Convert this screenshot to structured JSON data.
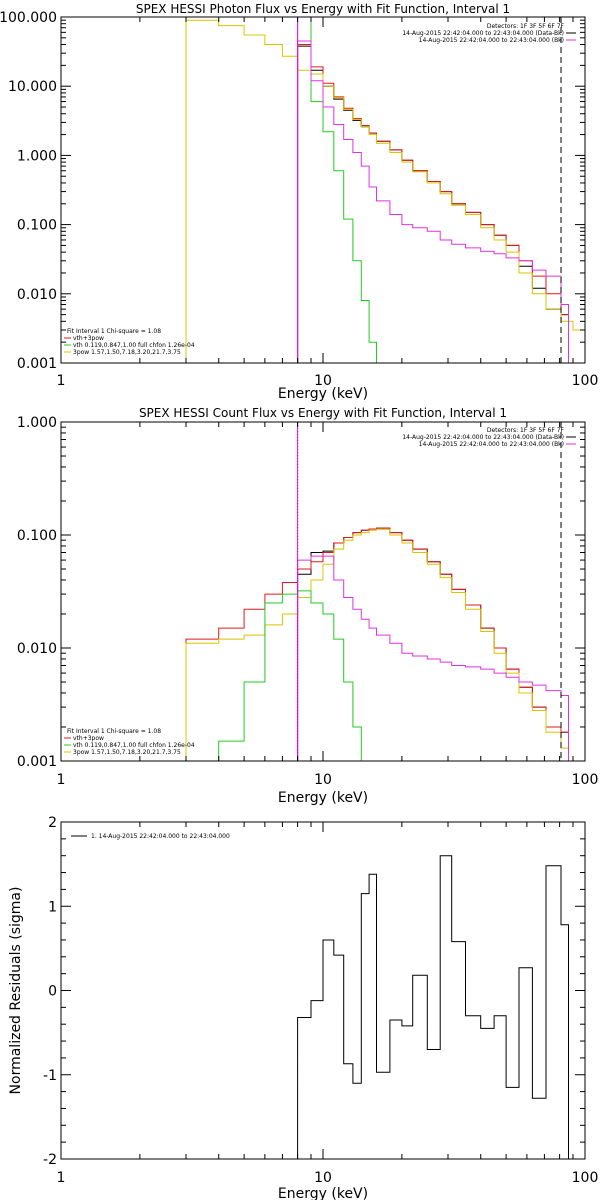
{
  "chart_data": [
    {
      "type": "line",
      "title": "SPEX HESSI Photon Flux vs Energy with Fit Function, Interval 1",
      "xlabel": "Energy (keV)",
      "ylabel": "",
      "xscale": "log",
      "yscale": "log",
      "xlim": [
        1,
        100
      ],
      "ylim": [
        0.001,
        100
      ],
      "x_ticks": [
        "1",
        "10",
        "100"
      ],
      "y_ticks": [
        "0.001",
        "0.010",
        "0.100",
        "1.000",
        "10.000",
        "100.000"
      ],
      "grid": false,
      "info_lines": [
        "Detectors: 1F 3F 5F 6F 7F",
        "14-Aug-2015 22:42:04.000 to 22:43:04.000 (Data-Bk)",
        "14-Aug-2015 22:42:04.000 to 22:43:04.000 (Bk)"
      ],
      "legend_lines": [
        "Fit Interval 1   Chi-square = 1.08",
        "vth+3pow",
        "vth 0.119,0.847,1.00  full chfon 1.26e-04",
        "3pow 1.57,1.50,7.18,3.20,21.7,3.75"
      ],
      "vlines": [
        {
          "x": 8,
          "style": "solid",
          "color": "#ff00ff"
        },
        {
          "x": 81,
          "style": "dashed",
          "color": "#000000"
        }
      ],
      "series": [
        {
          "color": "#000000",
          "x": [
            8,
            9,
            10,
            11,
            12,
            13,
            14,
            15,
            16,
            18,
            20,
            22,
            25,
            28,
            31,
            35,
            40,
            45,
            50,
            56,
            63,
            71,
            81
          ],
          "values": [
            38,
            17,
            10,
            6.5,
            4.5,
            3.2,
            2.6,
            2.1,
            1.6,
            1.2,
            0.85,
            0.6,
            0.42,
            0.3,
            0.2,
            0.15,
            0.1,
            0.07,
            0.05,
            0.025,
            0.012,
            0.006,
            0.005
          ]
        },
        {
          "color": "#e31a1c",
          "x": [
            8,
            9,
            10,
            11,
            12,
            13,
            14,
            15,
            16,
            18,
            20,
            22,
            25,
            28,
            31,
            35,
            40,
            45,
            50,
            56,
            63,
            71,
            81
          ],
          "values": [
            40,
            19,
            11,
            7,
            4.8,
            3.4,
            2.7,
            2.1,
            1.6,
            1.2,
            0.85,
            0.6,
            0.42,
            0.3,
            0.2,
            0.15,
            0.1,
            0.07,
            0.05,
            0.03,
            0.018,
            0.01,
            0.005
          ]
        },
        {
          "color": "#d9c400",
          "x": [
            3,
            4,
            5,
            6,
            7,
            8,
            9,
            10,
            11,
            12,
            13,
            14,
            15,
            16,
            18,
            20,
            22,
            25,
            28,
            31,
            35,
            40,
            45,
            50,
            56,
            63,
            71,
            81,
            90,
            100
          ],
          "values": [
            90,
            75,
            55,
            40,
            27,
            17,
            15,
            10,
            6.8,
            4.6,
            3.3,
            2.6,
            2.0,
            1.5,
            1.1,
            0.8,
            0.58,
            0.4,
            0.28,
            0.19,
            0.14,
            0.09,
            0.06,
            0.04,
            0.02,
            0.01,
            0.006,
            0.004,
            0.003,
            0.002
          ]
        },
        {
          "color": "#22cc22",
          "x": [
            8,
            9,
            10,
            11,
            12,
            13,
            14,
            15,
            16
          ],
          "values": [
            100,
            6,
            2.2,
            0.6,
            0.12,
            0.03,
            0.008,
            0.002,
            0.0005
          ]
        },
        {
          "color": "#e033e0",
          "x": [
            8,
            9,
            10,
            11,
            12,
            13,
            14,
            15,
            16,
            18,
            20,
            22,
            25,
            28,
            31,
            35,
            40,
            45,
            50,
            56,
            63,
            71,
            81
          ],
          "values": [
            45,
            12,
            5,
            2.8,
            1.7,
            1.1,
            0.7,
            0.35,
            0.22,
            0.14,
            0.1,
            0.09,
            0.08,
            0.06,
            0.052,
            0.046,
            0.041,
            0.038,
            0.033,
            0.03,
            0.022,
            0.018,
            0.007
          ]
        }
      ]
    },
    {
      "type": "line",
      "title": "SPEX HESSI Count Flux vs Energy with Fit Function, Interval 1",
      "xlabel": "Energy (keV)",
      "ylabel": "",
      "xscale": "log",
      "yscale": "log",
      "xlim": [
        1,
        100
      ],
      "ylim": [
        0.001,
        1
      ],
      "x_ticks": [
        "1",
        "10",
        "100"
      ],
      "y_ticks": [
        "0.001",
        "0.010",
        "0.100",
        "1.000"
      ],
      "grid": false,
      "info_lines": [
        "Detectors: 1F 3F 5F 6F 7F",
        "14-Aug-2015 22:42:04.000 to 22:43:04.000 (Data-Bk)",
        "14-Aug-2015 22:42:04.000 to 22:43:04.000 (Bk)"
      ],
      "legend_lines": [
        "Fit Interval 1   Chi-square = 1.08",
        "vth+3pow",
        "vth 0.119,0.847,1.00  full chfon 1.26e-04",
        "3pow 1.57,1.50,7.18,3.20,21.7,3.75"
      ],
      "vlines": [
        {
          "x": 8,
          "style": "dotted",
          "color": "#000000"
        },
        {
          "x": 8,
          "style": "solid",
          "color": "#ff00ff"
        },
        {
          "x": 81,
          "style": "dashed",
          "color": "#000000"
        }
      ],
      "series": [
        {
          "color": "#000000",
          "x": [
            8,
            9,
            10,
            11,
            12,
            13,
            14,
            15,
            16,
            18,
            20,
            22,
            25,
            28,
            31,
            35,
            40,
            45,
            50,
            56,
            63,
            71,
            81
          ],
          "values": [
            0.045,
            0.07,
            0.072,
            0.085,
            0.095,
            0.105,
            0.11,
            0.113,
            0.115,
            0.105,
            0.09,
            0.075,
            0.058,
            0.045,
            0.033,
            0.024,
            0.015,
            0.01,
            0.0065,
            0.0045,
            0.003,
            0.002,
            0.0018
          ]
        },
        {
          "color": "#e31a1c",
          "x": [
            3,
            4,
            5,
            6,
            7,
            8,
            9,
            10,
            11,
            12,
            13,
            14,
            15,
            16,
            18,
            20,
            22,
            25,
            28,
            31,
            35,
            40,
            45,
            50,
            56,
            63,
            71,
            81
          ],
          "values": [
            0.012,
            0.015,
            0.022,
            0.03,
            0.038,
            0.05,
            0.058,
            0.07,
            0.085,
            0.095,
            0.105,
            0.11,
            0.113,
            0.115,
            0.105,
            0.09,
            0.075,
            0.058,
            0.045,
            0.033,
            0.024,
            0.015,
            0.01,
            0.0065,
            0.0045,
            0.003,
            0.002,
            0.0018
          ]
        },
        {
          "color": "#d9c400",
          "x": [
            3,
            4,
            5,
            6,
            7,
            8,
            9,
            10,
            11,
            12,
            13,
            14,
            15,
            16,
            18,
            20,
            22,
            25,
            28,
            31,
            35,
            40,
            45,
            50,
            56,
            63,
            71,
            81
          ],
          "values": [
            0.011,
            0.012,
            0.013,
            0.016,
            0.02,
            0.028,
            0.04,
            0.055,
            0.075,
            0.09,
            0.1,
            0.105,
            0.11,
            0.112,
            0.1,
            0.085,
            0.07,
            0.055,
            0.042,
            0.031,
            0.022,
            0.014,
            0.009,
            0.006,
            0.004,
            0.0028,
            0.0018,
            0.0013
          ]
        },
        {
          "color": "#22cc22",
          "x": [
            4,
            5,
            6,
            7,
            8,
            9,
            10,
            11,
            12,
            13,
            14
          ],
          "values": [
            0.0015,
            0.005,
            0.025,
            0.03,
            0.032,
            0.025,
            0.02,
            0.012,
            0.005,
            0.002,
            0.001
          ]
        },
        {
          "color": "#e033e0",
          "x": [
            8,
            9,
            10,
            11,
            12,
            13,
            14,
            15,
            16,
            18,
            20,
            22,
            25,
            28,
            31,
            35,
            40,
            45,
            50,
            56,
            63,
            71,
            81
          ],
          "values": [
            0.06,
            0.065,
            0.065,
            0.04,
            0.028,
            0.022,
            0.018,
            0.015,
            0.013,
            0.011,
            0.009,
            0.0085,
            0.008,
            0.0075,
            0.007,
            0.0068,
            0.0065,
            0.006,
            0.0055,
            0.005,
            0.0047,
            0.0042,
            0.0038
          ]
        }
      ]
    },
    {
      "type": "line",
      "title": "",
      "xlabel": "Energy (keV)",
      "ylabel": "Normalized Residuals (sigma)",
      "xscale": "log",
      "yscale": "linear",
      "xlim": [
        1,
        100
      ],
      "ylim": [
        -2,
        2
      ],
      "x_ticks": [
        "1",
        "10",
        "100"
      ],
      "y_ticks": [
        "-2",
        "-1",
        "0",
        "1",
        "2"
      ],
      "grid": false,
      "legend_lines": [
        "1. 14-Aug-2015 22:42:04.000 to 22:43:04.000"
      ],
      "series": [
        {
          "name": "1. 14-Aug-2015 22:42:04.000 to 22:43:04.000",
          "color": "#000000",
          "x": [
            8,
            9,
            10,
            11,
            12,
            13,
            14,
            15,
            16,
            18,
            20,
            22,
            25,
            28,
            31,
            35,
            40,
            45,
            50,
            56,
            63,
            71,
            81
          ],
          "values": [
            -0.32,
            -0.12,
            0.6,
            0.42,
            -0.87,
            -1.1,
            1.15,
            1.38,
            -0.97,
            -0.35,
            -0.42,
            0.18,
            -0.7,
            1.6,
            0.58,
            -0.3,
            -0.45,
            -0.3,
            -1.15,
            0.27,
            -1.28,
            1.48,
            0.78
          ]
        }
      ]
    }
  ]
}
